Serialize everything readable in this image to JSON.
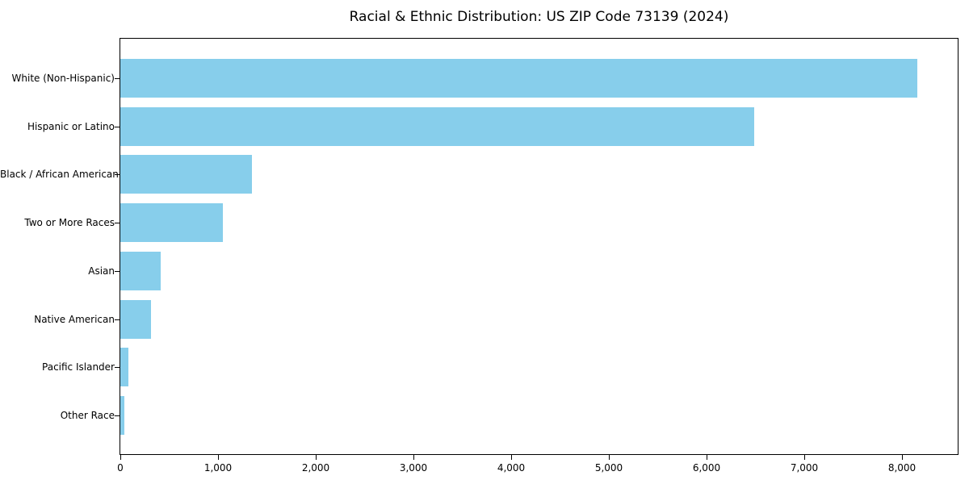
{
  "chart_data": {
    "type": "bar",
    "orientation": "horizontal",
    "title": "Racial & Ethnic Distribution: US ZIP Code 73139 (2024)",
    "categories": [
      "White (Non-Hispanic)",
      "Hispanic or Latino",
      "Black / African American",
      "Two or More Races",
      "Asian",
      "Native American",
      "Pacific Islander",
      "Other Race"
    ],
    "values": [
      8160,
      6490,
      1350,
      1050,
      415,
      315,
      80,
      45
    ],
    "xlabel": "",
    "ylabel": "",
    "xlim": [
      0,
      8570
    ],
    "x_ticks": [
      0,
      1000,
      2000,
      3000,
      4000,
      5000,
      6000,
      7000,
      8000
    ],
    "x_tick_labels": [
      "0",
      "1,000",
      "2,000",
      "3,000",
      "4,000",
      "5,000",
      "6,000",
      "7,000",
      "8,000"
    ],
    "bar_color": "#87CEEB",
    "spine_color": "#000000",
    "text_color": "#000000",
    "background_color": "#ffffff",
    "grid": false,
    "legend": "none"
  }
}
